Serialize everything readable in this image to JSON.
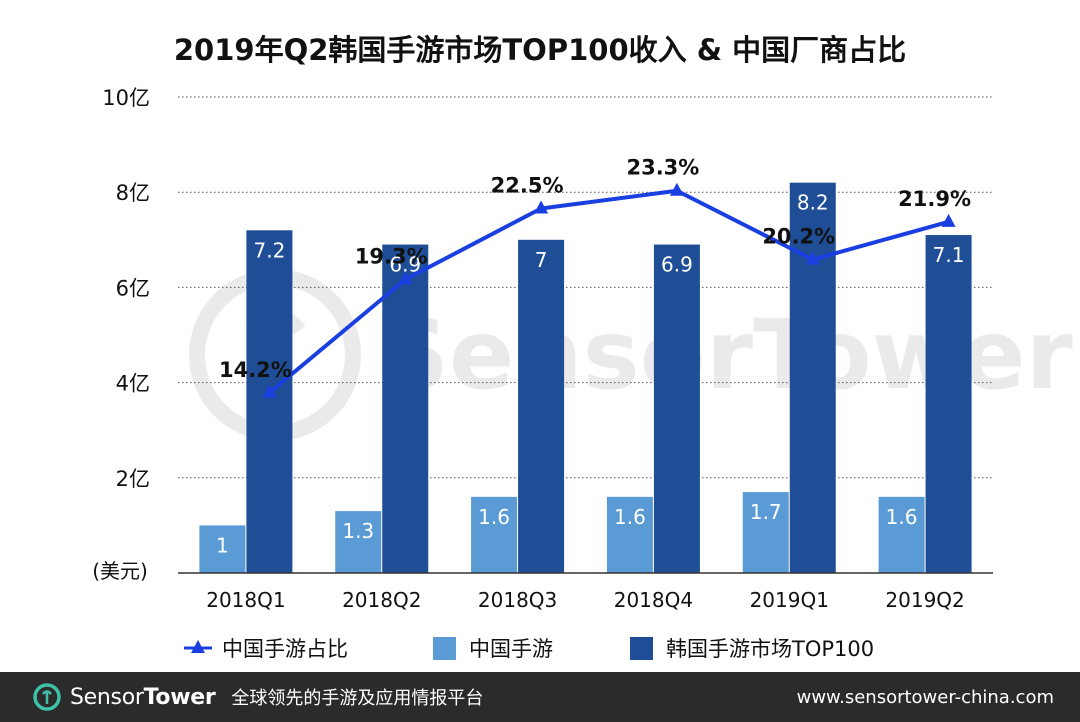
{
  "chart_data": {
    "type": "bar",
    "title": "2019年Q2韩国手游市场TOP100收入 & 中国厂商占比",
    "ylabel": "(美元)",
    "ylim": [
      0,
      10
    ],
    "ytick_values": [
      2,
      4,
      6,
      8,
      10
    ],
    "ytick_labels": [
      "2亿",
      "4亿",
      "6亿",
      "8亿",
      "10亿"
    ],
    "categories": [
      "2018Q1",
      "2018Q2",
      "2018Q3",
      "2018Q4",
      "2019Q1",
      "2019Q2"
    ],
    "series": [
      {
        "name": "中国手游",
        "color": "#5b9bd5",
        "values": [
          1,
          1.3,
          1.6,
          1.6,
          1.7,
          1.6
        ],
        "labels": [
          "1",
          "1.3",
          "1.6",
          "1.6",
          "1.7",
          "1.6"
        ]
      },
      {
        "name": "韩国手游市场TOP100",
        "color": "#1f4e96",
        "values": [
          7.2,
          6.9,
          7,
          6.9,
          8.2,
          7.1
        ],
        "labels": [
          "7.2",
          "6.9",
          "7",
          "6.9",
          "8.2",
          "7.1"
        ]
      }
    ],
    "line": {
      "name": "中国手游占比",
      "color": "#1a3fe0",
      "values": [
        14.2,
        19.3,
        22.5,
        23.3,
        20.2,
        21.9
      ],
      "labels": [
        "14.2%",
        "19.3%",
        "22.5%",
        "23.3%",
        "20.2%",
        "21.9%"
      ]
    },
    "legend_order": [
      "中国手游占比",
      "中国手游",
      "韩国手游市场TOP100"
    ],
    "legend_position": "bottom",
    "grid": true,
    "watermark": "SensorTower"
  },
  "footer": {
    "brand_part1": "Sensor",
    "brand_part2": "Tower",
    "tagline": "全球领先的手游及应用情报平台",
    "url": "www.sensortower-china.com"
  },
  "colors": {
    "footer_bg": "#2b2b2b",
    "grid": "#555555",
    "text": "#111111"
  }
}
